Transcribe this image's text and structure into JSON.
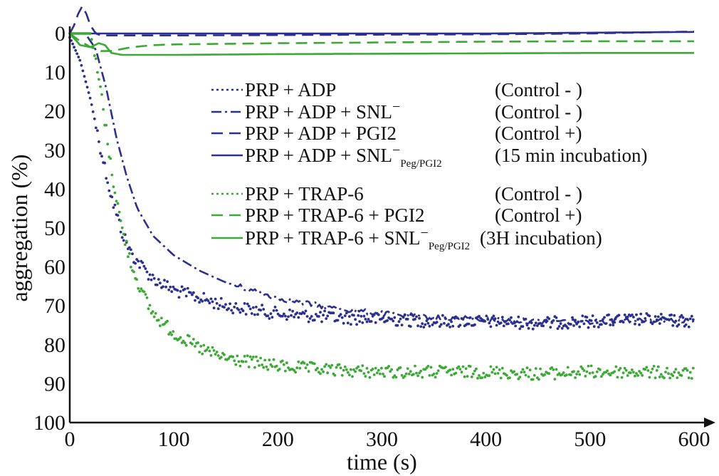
{
  "chart_data": {
    "type": "line",
    "xlabel": "time (s)",
    "ylabel": "aggregation (%)",
    "xlim": [
      0,
      600
    ],
    "ylim": [
      100,
      0
    ],
    "y_inverted": true,
    "x_ticks": [
      "0",
      "100",
      "200",
      "300",
      "400",
      "500",
      "600"
    ],
    "y_ticks": [
      "0",
      "10",
      "20",
      "30",
      "40",
      "50",
      "60",
      "70",
      "80",
      "90",
      "100"
    ],
    "grid": false,
    "legend_position": "upper-center",
    "colors": {
      "blue": "#2b2f8f",
      "green": "#3aaa35"
    },
    "series": [
      {
        "name": "PRP + ADP",
        "legend_suffix": "",
        "note": "(Control - )",
        "color": "#2b2f8f",
        "style": "dotted",
        "x": [
          0,
          10,
          20,
          30,
          40,
          50,
          60,
          80,
          100,
          125,
          150,
          200,
          250,
          300,
          350,
          400,
          450,
          500,
          550,
          600
        ],
        "values": [
          1,
          7,
          17,
          30,
          42,
          51,
          57,
          63,
          66,
          68,
          70,
          72,
          73,
          73.5,
          74,
          74,
          74.5,
          74,
          73.5,
          74
        ]
      },
      {
        "name": "PRP + ADP + SNL",
        "legend_suffix": "−",
        "note": "(Control - )",
        "color": "#2b2f8f",
        "style": "dashdot",
        "x": [
          0,
          15,
          25,
          35,
          45,
          55,
          65,
          80,
          100,
          125,
          150,
          175,
          200,
          250,
          300,
          350,
          400,
          450,
          500,
          550,
          600
        ],
        "values": [
          0,
          0,
          4,
          14,
          27,
          37,
          45,
          52,
          57,
          61,
          64,
          66,
          68,
          70.5,
          72,
          73,
          73.5,
          74,
          74,
          73.5,
          74
        ]
      },
      {
        "name": "PRP + ADP + PGI2",
        "legend_suffix": "",
        "note": "(Control +)",
        "color": "#2b2f8f",
        "style": "dashed",
        "x": [
          0,
          4,
          8,
          12,
          16,
          20,
          25,
          30,
          40,
          100,
          200,
          300,
          400,
          500,
          600
        ],
        "values": [
          0,
          -2,
          -5,
          -7,
          -5,
          -2,
          0,
          0.5,
          0.5,
          0.5,
          0.4,
          0.3,
          0.2,
          0,
          -0.5
        ]
      },
      {
        "name": "PRP + ADP + SNL",
        "legend_suffix": "−",
        "legend_subscript": "Peg/PGI2",
        "note": "(15 min incubation)",
        "color": "#2b2f8f",
        "style": "solid",
        "x": [
          0,
          100,
          200,
          300,
          400,
          500,
          600
        ],
        "values": [
          0,
          0,
          0,
          0,
          0,
          -0.2,
          -0.4
        ]
      },
      {
        "name": "PRP + TRAP-6",
        "legend_suffix": "",
        "note": "(Control - )",
        "color": "#3aaa35",
        "style": "dotted",
        "x": [
          0,
          20,
          30,
          40,
          50,
          60,
          70,
          80,
          100,
          125,
          150,
          200,
          250,
          300,
          350,
          400,
          450,
          500,
          550,
          600
        ],
        "values": [
          0,
          0,
          15,
          35,
          50,
          60,
          67,
          72,
          77,
          81,
          83.5,
          85.5,
          86.5,
          87,
          87,
          87,
          87.5,
          87,
          87,
          87.5
        ]
      },
      {
        "name": "PRP + TRAP-6 + PGI2",
        "legend_suffix": "",
        "note": "(Control +)",
        "color": "#3aaa35",
        "style": "dashed",
        "x": [
          0,
          10,
          20,
          30,
          40,
          50,
          60,
          80,
          100,
          200,
          300,
          400,
          500,
          600
        ],
        "values": [
          0,
          2,
          3.5,
          4.5,
          4.5,
          4,
          3.5,
          3,
          2.8,
          2.5,
          2.3,
          2.1,
          2,
          2
        ]
      },
      {
        "name": "PRP + TRAP-6 + SNL",
        "legend_suffix": "−",
        "legend_subscript": "Peg/PGI2",
        "note": "(3H incubation)",
        "color": "#3aaa35",
        "style": "solid",
        "x": [
          0,
          10,
          20,
          28,
          34,
          40,
          50,
          60,
          100,
          200,
          300,
          400,
          500,
          600
        ],
        "values": [
          0,
          3,
          3.5,
          2.5,
          3,
          5,
          5.5,
          5.5,
          5.5,
          5.3,
          5.2,
          5.1,
          5.0,
          5.0
        ]
      }
    ]
  }
}
